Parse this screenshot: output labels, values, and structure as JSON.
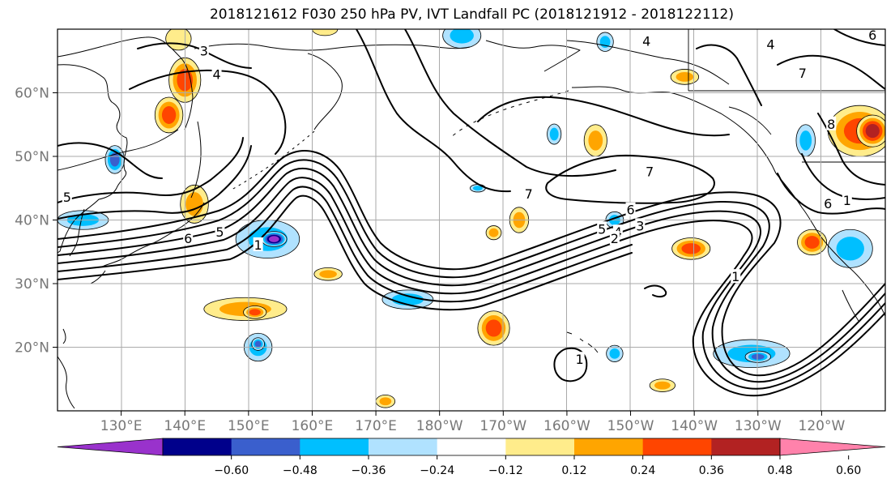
{
  "title": "2018121612 F030 250 hPa PV, IVT Landfall PC (2018121912 - 2018122112)",
  "chart_data": {
    "type": "contour-map",
    "title": "2018121612 F030 250 hPa PV, IVT Landfall PC (2018121912 - 2018122112)",
    "lon_range": [
      120,
      250
    ],
    "lat_range": [
      10,
      70
    ],
    "grid": true,
    "x_ticks": [
      {
        "lon": 130,
        "label": "130°E"
      },
      {
        "lon": 140,
        "label": "140°E"
      },
      {
        "lon": 150,
        "label": "150°E"
      },
      {
        "lon": 160,
        "label": "160°E"
      },
      {
        "lon": 170,
        "label": "170°E"
      },
      {
        "lon": 180,
        "label": "180°W"
      },
      {
        "lon": 190,
        "label": "170°W"
      },
      {
        "lon": 200,
        "label": "160°W"
      },
      {
        "lon": 210,
        "label": "150°W"
      },
      {
        "lon": 220,
        "label": "140°W"
      },
      {
        "lon": 230,
        "label": "130°W"
      },
      {
        "lon": 240,
        "label": "120°W"
      }
    ],
    "y_ticks": [
      {
        "lat": 20,
        "label": "20°N"
      },
      {
        "lat": 30,
        "label": "30°N"
      },
      {
        "lat": 40,
        "label": "40°N"
      },
      {
        "lat": 50,
        "label": "50°N"
      },
      {
        "lat": 60,
        "label": "60°N"
      }
    ],
    "colorbar": {
      "extend": "both",
      "colors": [
        "#9932cc",
        "#00008b",
        "#3a5fcd",
        "#00bfff",
        "#b0e2ff",
        "#ffffff",
        "#ffec8b",
        "#ffa500",
        "#ff4500",
        "#b22222",
        "#ff82ab"
      ],
      "tick_values": [
        -0.6,
        -0.48,
        -0.36,
        -0.24,
        -0.12,
        0.12,
        0.24,
        0.36,
        0.48,
        0.6
      ],
      "tick_labels": [
        "−0.60",
        "−0.48",
        "−0.36",
        "−0.24",
        "−0.12",
        "0.12",
        "0.24",
        "0.36",
        "0.48",
        "0.60"
      ]
    },
    "contour_labels": [
      {
        "text": "4",
        "lon": 145,
        "lat": 62.8
      },
      {
        "text": "3",
        "lon": 143,
        "lat": 66.5
      },
      {
        "text": "5",
        "lon": 121.5,
        "lat": 43.5
      },
      {
        "text": "6",
        "lon": 140.5,
        "lat": 37
      },
      {
        "text": "5",
        "lon": 145.5,
        "lat": 38
      },
      {
        "text": "1",
        "lon": 151.5,
        "lat": 36
      },
      {
        "text": "7",
        "lon": 194,
        "lat": 44
      },
      {
        "text": "7",
        "lon": 213,
        "lat": 47.5
      },
      {
        "text": "6",
        "lon": 210,
        "lat": 41.5
      },
      {
        "text": "5",
        "lon": 205.5,
        "lat": 38.5
      },
      {
        "text": "4",
        "lon": 208,
        "lat": 38
      },
      {
        "text": "3",
        "lon": 211.5,
        "lat": 39
      },
      {
        "text": "2",
        "lon": 207.5,
        "lat": 37
      },
      {
        "text": "1",
        "lon": 202,
        "lat": 18
      },
      {
        "text": "1",
        "lon": 226.5,
        "lat": 31
      },
      {
        "text": "7",
        "lon": 237,
        "lat": 63
      },
      {
        "text": "6",
        "lon": 248,
        "lat": 69
      },
      {
        "text": "6",
        "lon": 241,
        "lat": 42.5
      },
      {
        "text": "8",
        "lon": 241.5,
        "lat": 55
      },
      {
        "text": "1",
        "lon": 244,
        "lat": 43
      },
      {
        "text": "4",
        "lon": 212.5,
        "lat": 68
      },
      {
        "text": "4",
        "lon": 232,
        "lat": 67.5
      }
    ],
    "anomaly_regions": [
      {
        "lon": 140,
        "lat": 62,
        "rx": 2.5,
        "ry": 3.5,
        "value": 0.38
      },
      {
        "lon": 137.5,
        "lat": 56.5,
        "rx": 2.2,
        "ry": 2.8,
        "value": 0.4
      },
      {
        "lon": 139,
        "lat": 68.5,
        "rx": 2,
        "ry": 1.8,
        "value": 0.22
      },
      {
        "lon": 141.5,
        "lat": 42.5,
        "rx": 2.2,
        "ry": 3,
        "value": 0.28
      },
      {
        "lon": 129,
        "lat": 49.5,
        "rx": 1.5,
        "ry": 2.2,
        "value": -0.36
      },
      {
        "lon": 124,
        "lat": 40,
        "rx": 4,
        "ry": 1.5,
        "value": -0.28
      },
      {
        "lon": 153,
        "lat": 37,
        "rx": 5,
        "ry": 3,
        "value": -0.3
      },
      {
        "lon": 154,
        "lat": 37,
        "rx": 2,
        "ry": 1.2,
        "value": -0.6
      },
      {
        "lon": 149.5,
        "lat": 26,
        "rx": 6.5,
        "ry": 1.8,
        "value": 0.27
      },
      {
        "lon": 151,
        "lat": 25.5,
        "rx": 1.8,
        "ry": 1,
        "value": 0.38
      },
      {
        "lon": 151.5,
        "lat": 20,
        "rx": 2.2,
        "ry": 2.2,
        "value": -0.28
      },
      {
        "lon": 151.5,
        "lat": 20.5,
        "rx": 1,
        "ry": 1,
        "value": -0.45
      },
      {
        "lon": 162.5,
        "lat": 31.5,
        "rx": 2.2,
        "ry": 1,
        "value": 0.26
      },
      {
        "lon": 175,
        "lat": 27.5,
        "rx": 4,
        "ry": 1.5,
        "value": -0.26
      },
      {
        "lon": 188.5,
        "lat": 23,
        "rx": 2.5,
        "ry": 2.7,
        "value": 0.38
      },
      {
        "lon": 192.5,
        "lat": 40,
        "rx": 1.5,
        "ry": 2,
        "value": 0.26
      },
      {
        "lon": 188.5,
        "lat": 38,
        "rx": 1.2,
        "ry": 1.1,
        "value": 0.25
      },
      {
        "lon": 204.5,
        "lat": 52.5,
        "rx": 1.8,
        "ry": 2.5,
        "value": 0.27
      },
      {
        "lon": 218.5,
        "lat": 62.5,
        "rx": 2.2,
        "ry": 1.2,
        "value": 0.27
      },
      {
        "lon": 219.5,
        "lat": 35.5,
        "rx": 3,
        "ry": 1.7,
        "value": 0.36
      },
      {
        "lon": 229,
        "lat": 19,
        "rx": 6,
        "ry": 2.2,
        "value": -0.28
      },
      {
        "lon": 230,
        "lat": 18.5,
        "rx": 2,
        "ry": 0.9,
        "value": -0.42
      },
      {
        "lon": 238.5,
        "lat": 36.5,
        "rx": 2.3,
        "ry": 2,
        "value": 0.37
      },
      {
        "lon": 244.5,
        "lat": 35.5,
        "rx": 3.5,
        "ry": 3,
        "value": -0.28
      },
      {
        "lon": 246,
        "lat": 54,
        "rx": 5,
        "ry": 4,
        "value": 0.42
      },
      {
        "lon": 248,
        "lat": 54,
        "rx": 2.5,
        "ry": 2.5,
        "value": 0.5
      },
      {
        "lon": 237.5,
        "lat": 52.5,
        "rx": 1.5,
        "ry": 2.5,
        "value": -0.26
      },
      {
        "lon": 207.5,
        "lat": 40,
        "rx": 1.4,
        "ry": 1.3,
        "value": -0.26
      },
      {
        "lon": 183.5,
        "lat": 69,
        "rx": 3,
        "ry": 2,
        "value": -0.26
      },
      {
        "lon": 198,
        "lat": 53.5,
        "rx": 1.1,
        "ry": 1.6,
        "value": -0.28
      },
      {
        "lon": 206,
        "lat": 68,
        "rx": 1.3,
        "ry": 1.5,
        "value": -0.24
      },
      {
        "lon": 215,
        "lat": 14,
        "rx": 2,
        "ry": 1,
        "value": 0.3
      },
      {
        "lon": 171.5,
        "lat": 11.5,
        "rx": 1.5,
        "ry": 1,
        "value": 0.25
      },
      {
        "lon": 207.5,
        "lat": 19,
        "rx": 1.3,
        "ry": 1.3,
        "value": -0.25
      },
      {
        "lon": 162,
        "lat": 70,
        "rx": 2,
        "ry": 1,
        "value": 0.22
      },
      {
        "lon": 186,
        "lat": 45,
        "rx": 1.2,
        "ry": 0.6,
        "value": -0.25
      }
    ]
  }
}
